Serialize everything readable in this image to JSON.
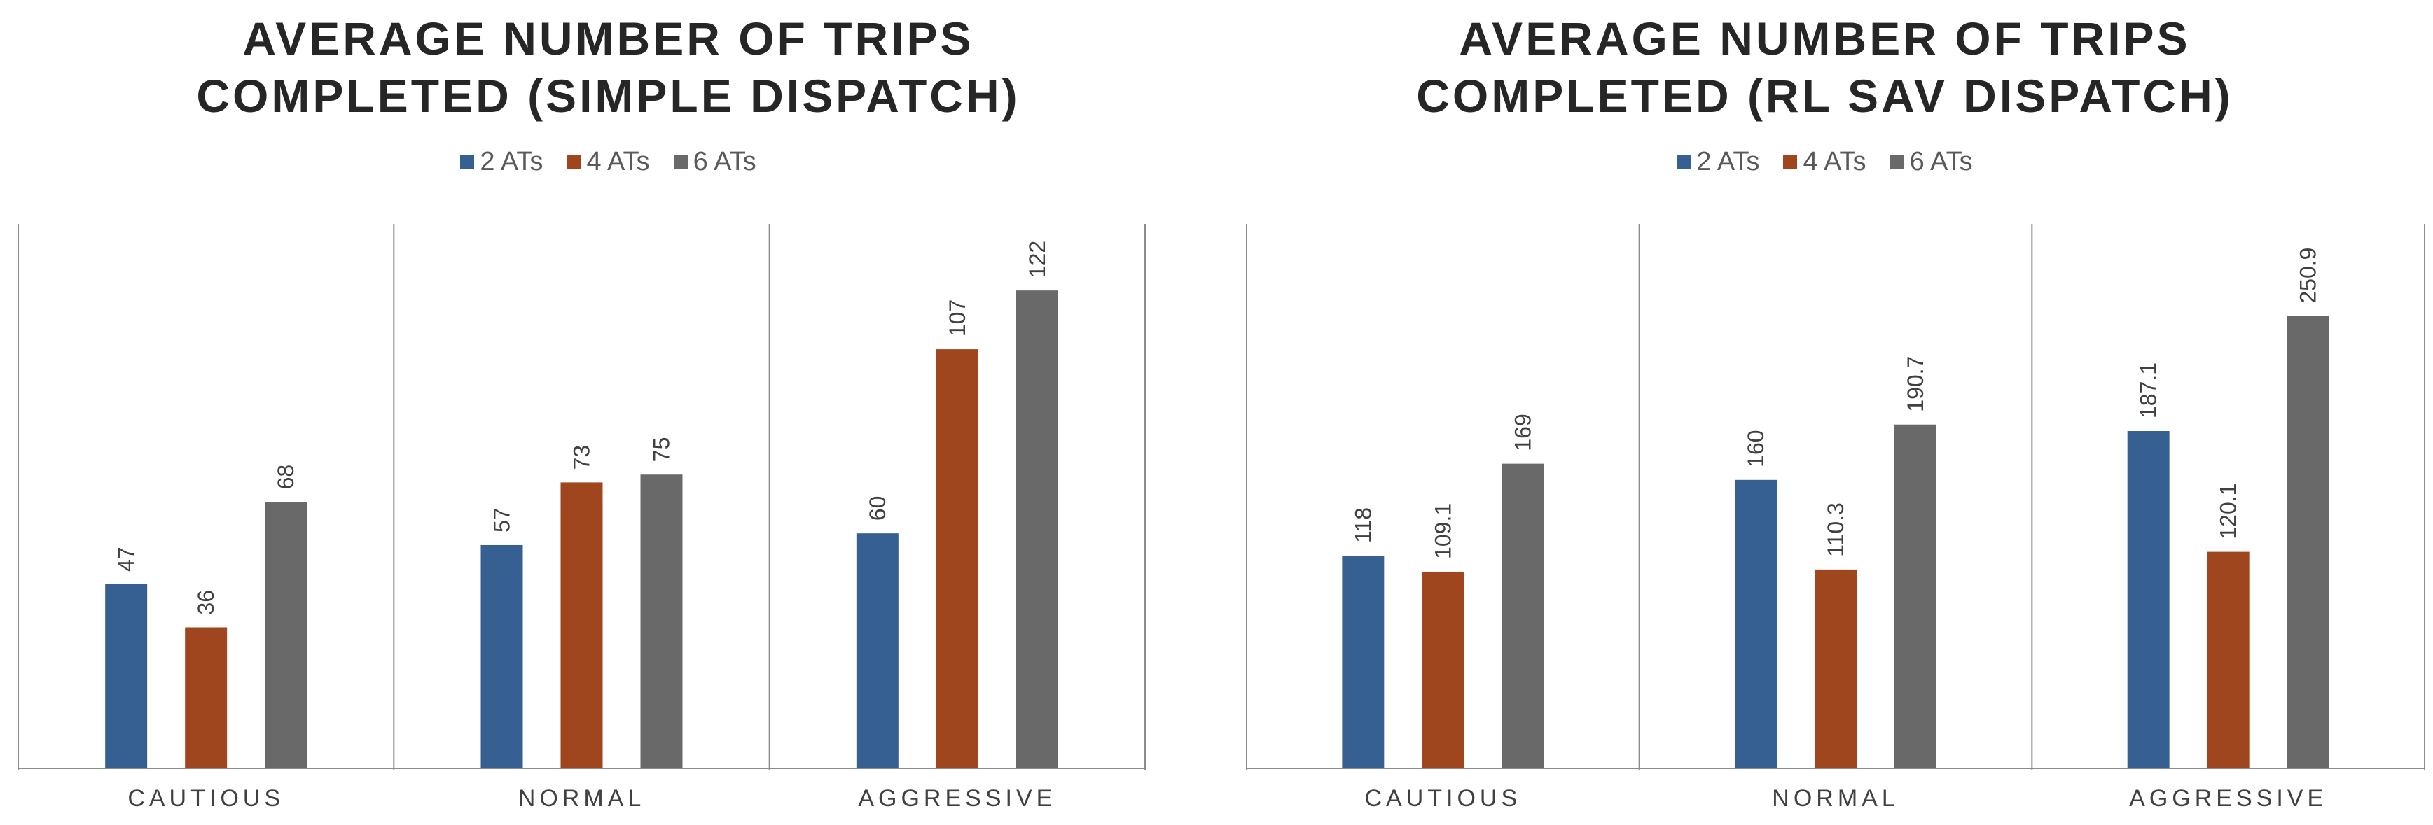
{
  "colors": {
    "series_2": "#376092",
    "series_4": "#A0461E",
    "series_6": "#696969",
    "axis": "#8c8c8c",
    "text": "#404040"
  },
  "chart_data": [
    {
      "type": "bar",
      "title_lines": [
        "AVERAGE NUMBER OF TRIPS",
        "COMPLETED (SIMPLE DISPATCH)"
      ],
      "categories": [
        "CAUTIOUS",
        "NORMAL",
        "AGGRESSIVE"
      ],
      "series": [
        {
          "name": "2 ATs",
          "values": [
            47,
            57,
            60
          ],
          "labels": [
            "47",
            "57",
            "60"
          ]
        },
        {
          "name": "4 ATs",
          "values": [
            36,
            73,
            107
          ],
          "labels": [
            "36",
            "73",
            "107"
          ]
        },
        {
          "name": "6 ATs",
          "values": [
            68,
            75,
            122
          ],
          "labels": [
            "68",
            "75",
            "122"
          ]
        }
      ],
      "ylim": [
        0,
        139
      ],
      "grid": false,
      "legend_position": "top-center"
    },
    {
      "type": "bar",
      "title_lines": [
        "AVERAGE NUMBER OF TRIPS",
        "COMPLETED (RL SAV DISPATCH)"
      ],
      "categories": [
        "CAUTIOUS",
        "NORMAL",
        "AGGRESSIVE"
      ],
      "series": [
        {
          "name": "2 ATs",
          "values": [
            118,
            160,
            187.1
          ],
          "labels": [
            "118",
            "160",
            "187.1"
          ]
        },
        {
          "name": "4 ATs",
          "values": [
            109.1,
            110.3,
            120.1
          ],
          "labels": [
            "109.1",
            "110.3",
            "120.1"
          ]
        },
        {
          "name": "6 ATs",
          "values": [
            169,
            190.7,
            250.9
          ],
          "labels": [
            "169",
            "190.7",
            "250.9"
          ]
        }
      ],
      "ylim": [
        0,
        302
      ],
      "grid": false,
      "legend_position": "top-center"
    }
  ]
}
